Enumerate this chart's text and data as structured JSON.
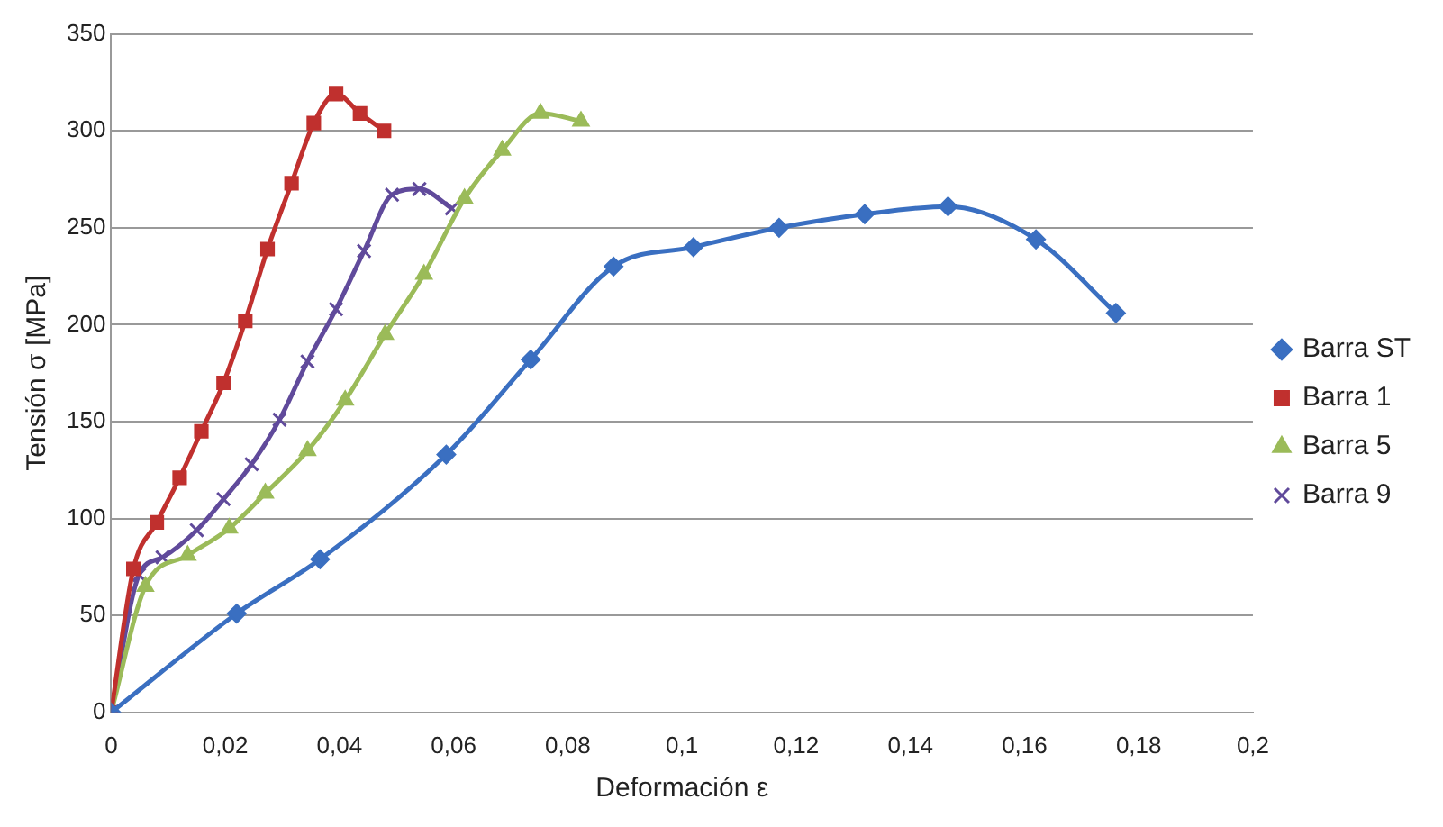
{
  "chart_data": {
    "type": "line",
    "xlabel": "Deformación ε",
    "ylabel": "Tensión σ [MPa]",
    "xlim": [
      0,
      0.2
    ],
    "xticks": [
      0,
      {
        "value": 0.02,
        "label": "0,02"
      },
      {
        "value": 0.04,
        "label": "0,04"
      },
      {
        "value": 0.06,
        "label": "0,06"
      },
      {
        "value": 0.08,
        "label": "0,08"
      },
      {
        "value": 0.1,
        "label": "0,1"
      },
      {
        "value": 0.12,
        "label": "0,12"
      },
      {
        "value": 0.14,
        "label": "0,14"
      },
      {
        "value": 0.16,
        "label": "0,16"
      },
      {
        "value": 0.18,
        "label": "0,18"
      },
      {
        "value": 0.2,
        "label": "0,2"
      }
    ],
    "ylim": [
      0,
      350
    ],
    "yticks": [
      0,
      50,
      100,
      150,
      200,
      250,
      300,
      350
    ],
    "grid": "y",
    "legend": "right",
    "series": [
      {
        "name": "Barra ST",
        "color": "#3a6fc1",
        "marker": "diamond",
        "x": [
          0,
          0.022,
          0.0366,
          0.0587,
          0.0735,
          0.088,
          0.102,
          0.117,
          0.132,
          0.1466,
          0.162,
          0.176
        ],
        "values": [
          0,
          51,
          79,
          133,
          182,
          230,
          240,
          250,
          257,
          261,
          244,
          206
        ]
      },
      {
        "name": "Barra 1",
        "color": "#c0302e",
        "marker": "square",
        "x": [
          0,
          0.0039,
          0.008,
          0.012,
          0.0158,
          0.0197,
          0.0235,
          0.0274,
          0.0316,
          0.0355,
          0.0394,
          0.0436,
          0.0478
        ],
        "values": [
          0,
          74,
          98,
          121,
          145,
          170,
          202,
          239,
          273,
          304,
          319,
          309,
          300
        ]
      },
      {
        "name": "Barra 5",
        "color": "#9bbb59",
        "marker": "triangle",
        "x": [
          0,
          0.006,
          0.0134,
          0.0207,
          0.027,
          0.0344,
          0.041,
          0.048,
          0.0548,
          0.0619,
          0.0685,
          0.0752,
          0.0823
        ],
        "values": [
          0,
          65,
          81,
          95,
          113,
          135,
          161,
          195,
          226,
          265,
          290,
          309,
          305
        ]
      },
      {
        "name": "Barra 9",
        "color": "#604a9b",
        "marker": "cross",
        "x": [
          0,
          0.0049,
          0.009,
          0.015,
          0.0197,
          0.0246,
          0.0295,
          0.0344,
          0.0394,
          0.0443,
          0.0492,
          0.054,
          0.0597
        ],
        "values": [
          0,
          71,
          80,
          94,
          110,
          128,
          151,
          181,
          208,
          238,
          267,
          270,
          260
        ]
      }
    ]
  }
}
